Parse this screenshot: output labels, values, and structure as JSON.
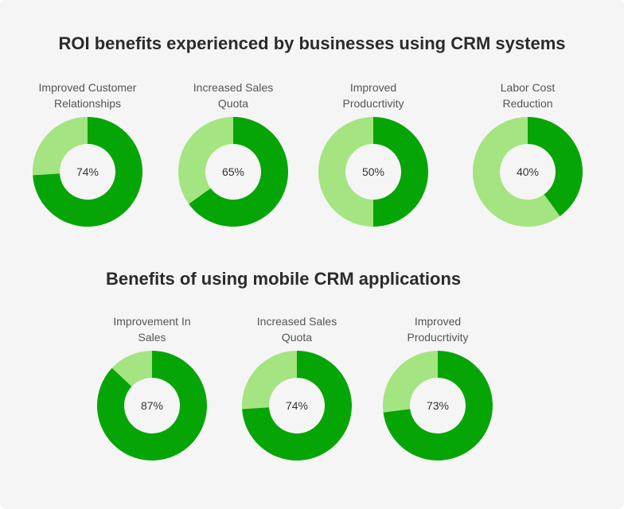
{
  "colors": {
    "dark": "#06a506",
    "light": "#a4e481",
    "hole": "#f5f5f5",
    "text": "#333333"
  },
  "titles": {
    "section1": "ROI benefits experienced by businesses using CRM systems",
    "section2": "Benefits of using mobile CRM applications"
  },
  "chart_data": [
    {
      "type": "pie",
      "title": "ROI benefits experienced by businesses using CRM systems",
      "categories": [
        "Improved Customer Relationships",
        "Increased Sales Quota",
        "Improved Producrtivity",
        "Labor Cost Reduction"
      ],
      "values": [
        74,
        65,
        50,
        40
      ],
      "labels": [
        "74%",
        "65%",
        "50%",
        "40%"
      ],
      "label_lines": [
        [
          "Improved Customer",
          "Relationships"
        ],
        [
          "Increased Sales",
          "Quota"
        ],
        [
          "Improved",
          "Producrtivity"
        ],
        [
          "Labor Cost",
          "Reduction"
        ]
      ]
    },
    {
      "type": "pie",
      "title": "Benefits of using mobile CRM applications",
      "categories": [
        "Improvement In Sales",
        "Increased Sales Quota",
        "Improved Producrtivity"
      ],
      "values": [
        87,
        74,
        73
      ],
      "labels": [
        "87%",
        "74%",
        "73%"
      ],
      "label_lines": [
        [
          "Improvement In",
          "Sales"
        ],
        [
          "Increased Sales",
          "Quota"
        ],
        [
          "Improved",
          "Producrtivity"
        ]
      ]
    }
  ]
}
